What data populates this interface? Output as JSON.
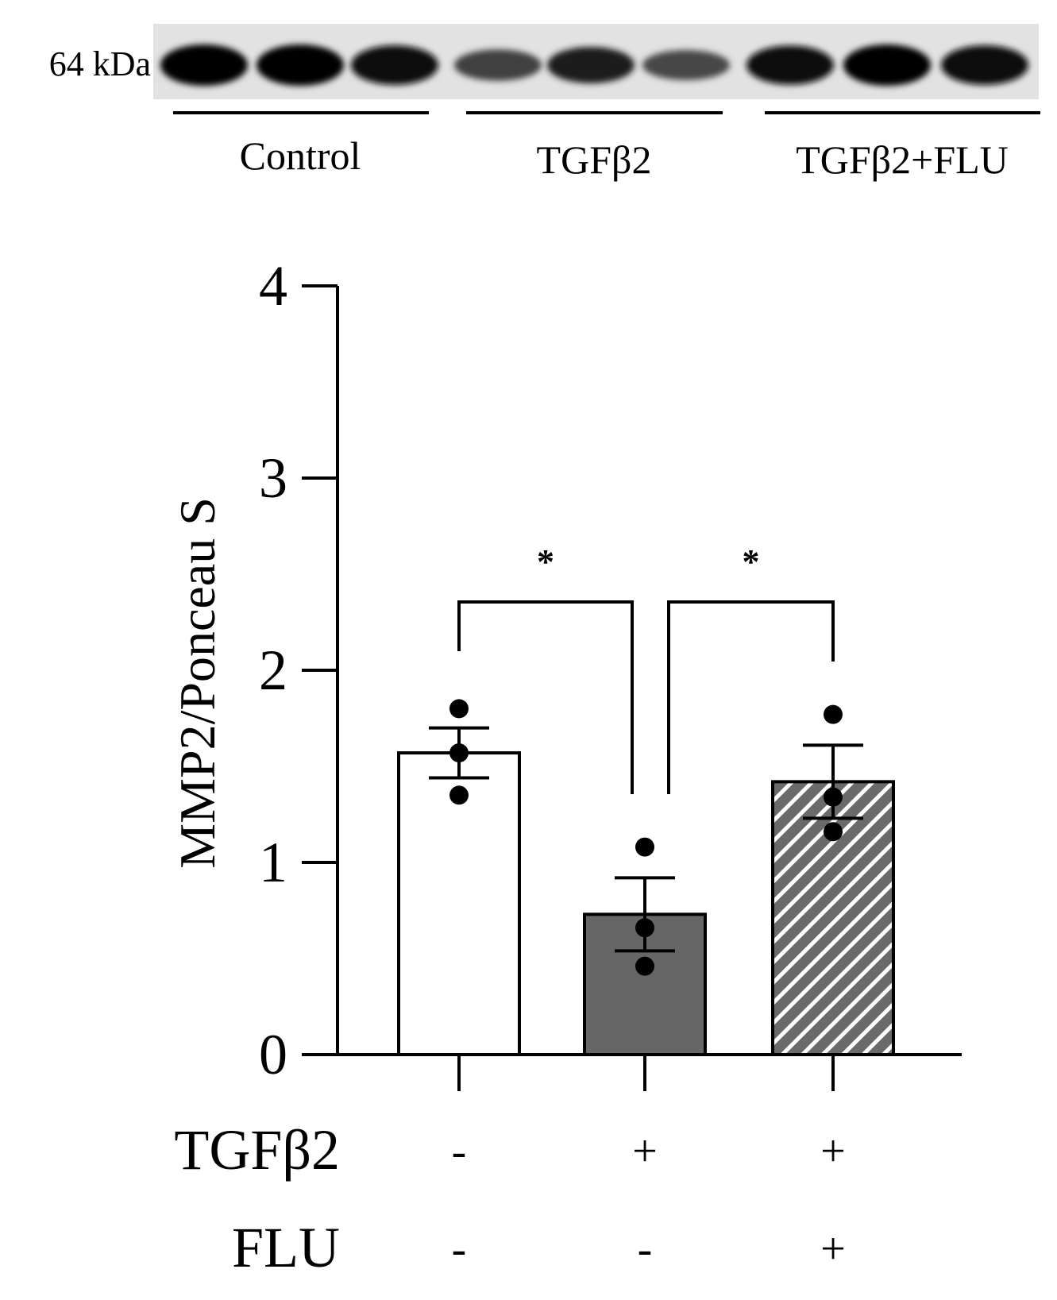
{
  "blot": {
    "marker_label": "64 kDa",
    "groups": [
      {
        "label": "Control",
        "intensity": [
          1.0,
          1.0,
          0.92
        ]
      },
      {
        "label": "TGFβ2",
        "intensity": [
          0.55,
          0.78,
          0.5
        ]
      },
      {
        "label": "TGFβ2+FLU",
        "intensity": [
          0.9,
          1.0,
          0.92
        ]
      }
    ]
  },
  "chart_data": {
    "type": "bar",
    "ylabel": "MMP2/Ponceau S",
    "ylim": [
      0,
      4
    ],
    "yticks": [
      "0",
      "1",
      "2",
      "3",
      "4"
    ],
    "categories": [
      "Control",
      "TGFβ2",
      "TGFβ2+FLU"
    ],
    "values": [
      1.57,
      0.73,
      1.42
    ],
    "sem": [
      0.13,
      0.19,
      0.19
    ],
    "points": [
      [
        1.8,
        1.57,
        1.35
      ],
      [
        1.08,
        0.66,
        0.46
      ],
      [
        1.77,
        1.34,
        1.16
      ]
    ],
    "fills": [
      "#ffffff",
      "#666666",
      "hatched"
    ],
    "significance": [
      {
        "from": 0,
        "to": 1,
        "label": "*"
      },
      {
        "from": 1,
        "to": 2,
        "label": "*"
      }
    ],
    "conditions": [
      {
        "label": "TGFβ2",
        "values": [
          "-",
          "+",
          "+"
        ]
      },
      {
        "label": "FLU",
        "values": [
          "-",
          "-",
          "+"
        ]
      }
    ]
  }
}
